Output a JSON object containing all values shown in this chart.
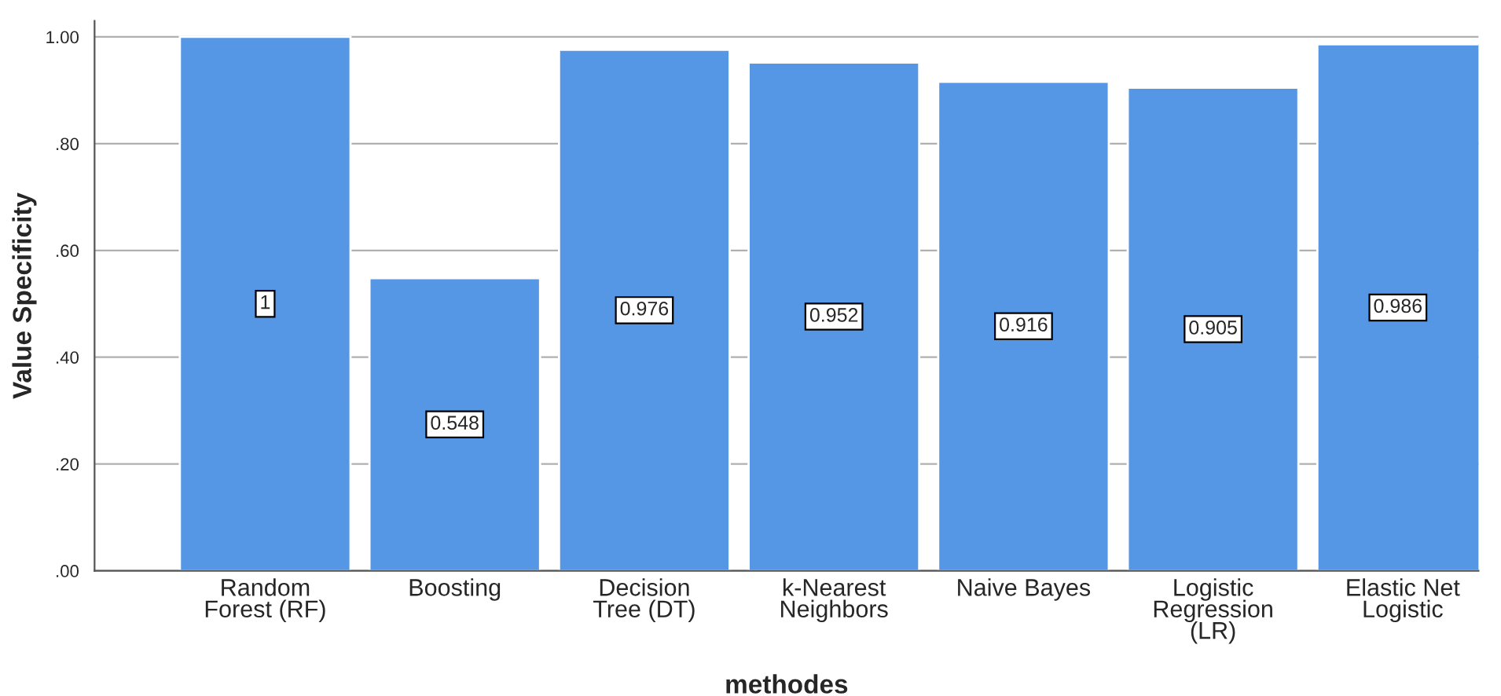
{
  "chart_data": {
    "type": "bar",
    "xlabel": "methodes",
    "ylabel": "Value Specificity",
    "categories": [
      "Random\nForest (RF)",
      "Boosting",
      "Decision\nTree (DT)",
      "k-Nearest\nNeighbors",
      "Naive Bayes",
      "Logistic\nRegression\n(LR)",
      "Elastic Net\nLogistic"
    ],
    "values": [
      1,
      0.548,
      0.976,
      0.952,
      0.916,
      0.905,
      0.986
    ],
    "value_labels": [
      "1",
      "0.548",
      "0.976",
      "0.952",
      "0.916",
      "0.905",
      "0.986"
    ],
    "color": "#5596e5",
    "ylim": [
      0,
      1.03
    ],
    "yticks": [
      {
        "value": 0,
        "label": ".00"
      },
      {
        "value": 0.2,
        "label": ".20"
      },
      {
        "value": 0.4,
        "label": ".40"
      },
      {
        "value": 0.6,
        "label": ".60"
      },
      {
        "value": 0.8,
        "label": ".80"
      },
      {
        "value": 1.0,
        "label": "1.00"
      }
    ],
    "grid": "y",
    "legend": false
  }
}
